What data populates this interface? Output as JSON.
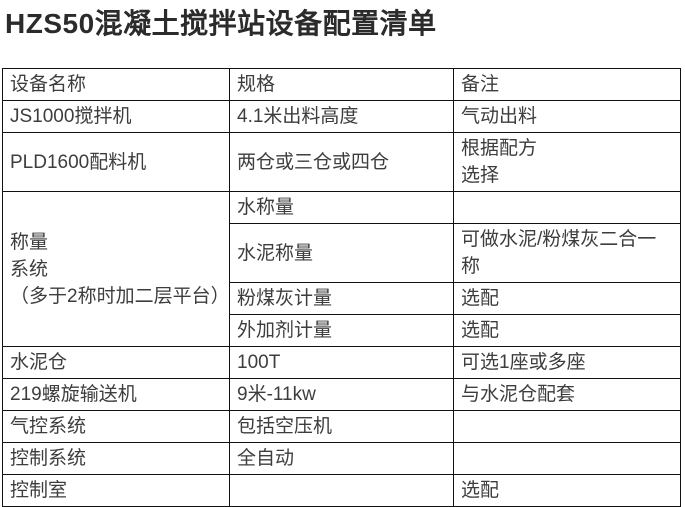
{
  "page": {
    "title": "HZS50混凝土搅拌站设备配置清单"
  },
  "colors": {
    "text": "#3d3d3d",
    "title": "#2b2b2b",
    "border": "#111111",
    "background": "#ffffff"
  },
  "table": {
    "headers": [
      "设备名称",
      "规格",
      "备注"
    ],
    "rows": [
      {
        "cells": [
          {
            "text": "JS1000搅拌机"
          },
          {
            "text": "4.1米出料高度"
          },
          {
            "text": "气动出料"
          }
        ]
      },
      {
        "cells": [
          {
            "text": "PLD1600配料机"
          },
          {
            "text": "两仓或三仓或四仓"
          },
          {
            "lines": [
              "根据配方",
              "选择"
            ]
          }
        ]
      },
      {
        "cells": [
          {
            "lines": [
              "称量",
              "系统",
              "（多于2称时加二层平台）"
            ],
            "rowspan": 4
          },
          {
            "text": "水称量"
          },
          {
            "text": ""
          }
        ]
      },
      {
        "cells": [
          {
            "text": "水泥称量"
          },
          {
            "text": "可做水泥/粉煤灰二合一称"
          }
        ]
      },
      {
        "cells": [
          {
            "text": "粉煤灰计量"
          },
          {
            "text": "选配"
          }
        ]
      },
      {
        "cells": [
          {
            "text": "外加剂计量"
          },
          {
            "text": "选配"
          }
        ]
      },
      {
        "cells": [
          {
            "text": "水泥仓"
          },
          {
            "text": "100T"
          },
          {
            "text": "可选1座或多座"
          }
        ]
      },
      {
        "cells": [
          {
            "text": "219螺旋输送机"
          },
          {
            "text": "9米-11kw"
          },
          {
            "text": "与水泥仓配套"
          }
        ]
      },
      {
        "cells": [
          {
            "text": "气控系统"
          },
          {
            "text": "包括空压机"
          },
          {
            "text": ""
          }
        ]
      },
      {
        "cells": [
          {
            "text": "控制系统"
          },
          {
            "text": "全自动"
          },
          {
            "text": ""
          }
        ]
      },
      {
        "cells": [
          {
            "text": "控制室"
          },
          {
            "text": ""
          },
          {
            "text": "选配"
          }
        ]
      }
    ]
  }
}
